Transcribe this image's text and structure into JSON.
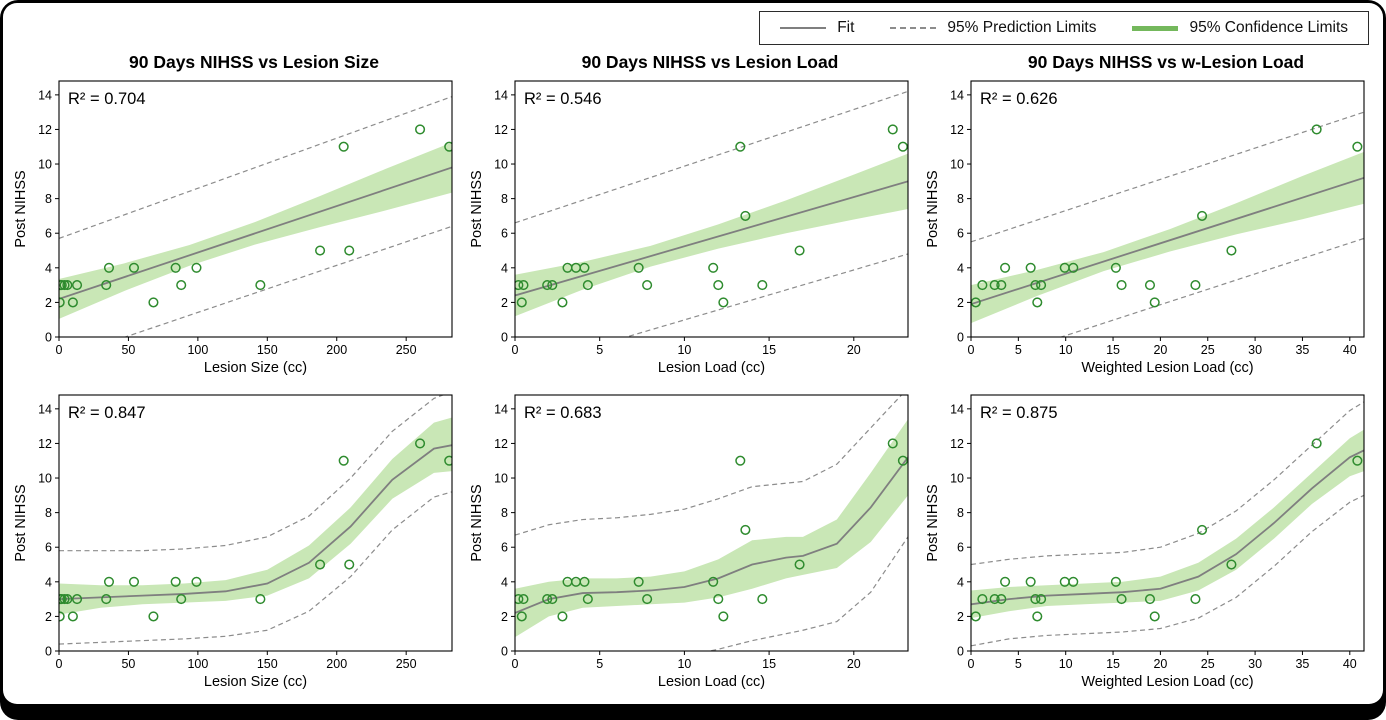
{
  "colors": {
    "fit": "#7f7f7f",
    "prediction": "#8c8c8c",
    "confidence_band": "#c9e7b6",
    "confidence_line": "#74b85c",
    "scatter": "#2e8b2e",
    "frame": "#000000",
    "background": "#ffffff"
  },
  "legend": {
    "items": [
      {
        "label": "Fit",
        "sample": "solid-line"
      },
      {
        "label": "95% Prediction Limits",
        "sample": "dashed-line"
      },
      {
        "label": "95% Confidence Limits",
        "sample": "green-band"
      }
    ]
  },
  "chart_data": [
    {
      "type": "scatter",
      "title": "90 Days NIHSS vs Lesion Size",
      "annotation": "R² = 0.704",
      "xlabel": "Lesion Size (cc)",
      "ylabel": "Post NIHSS",
      "xlim": [
        0,
        283
      ],
      "ylim": [
        0,
        14.8
      ],
      "xticks": [
        0,
        50,
        100,
        150,
        200,
        250
      ],
      "yticks": [
        0,
        2,
        4,
        6,
        8,
        10,
        12,
        14
      ],
      "points": [
        [
          0.5,
          2
        ],
        [
          1,
          3
        ],
        [
          2,
          3
        ],
        [
          4,
          3
        ],
        [
          6,
          3
        ],
        [
          10,
          2
        ],
        [
          13,
          3
        ],
        [
          34,
          3
        ],
        [
          36,
          4
        ],
        [
          54,
          4
        ],
        [
          68,
          2
        ],
        [
          84,
          4
        ],
        [
          88,
          3
        ],
        [
          99,
          4
        ],
        [
          145,
          3
        ],
        [
          188,
          5
        ],
        [
          205,
          11
        ],
        [
          209,
          5
        ],
        [
          260,
          12
        ],
        [
          281,
          11
        ]
      ],
      "fit": {
        "x": [
          0,
          283
        ],
        "y": [
          2.2,
          9.8
        ]
      },
      "confidence_band": {
        "x": [
          0,
          47,
          94,
          141,
          188,
          235,
          283
        ],
        "upper": [
          3.35,
          4.26,
          5.32,
          6.64,
          8.15,
          9.71,
          11.25
        ],
        "lower": [
          1.05,
          2.66,
          4.12,
          5.34,
          6.35,
          7.31,
          8.35
        ]
      },
      "prediction_upper": {
        "x": [
          0,
          283
        ],
        "y": [
          5.7,
          13.9
        ]
      },
      "prediction_lower": {
        "x": [
          0,
          283
        ],
        "y": [
          -1.3,
          6.4
        ]
      }
    },
    {
      "type": "scatter",
      "title": "90 Days NIHSS vs Lesion Load",
      "annotation": "R² = 0.546",
      "xlabel": "Lesion Load (cc)",
      "ylabel": "Post NIHSS",
      "xlim": [
        0,
        23.2
      ],
      "ylim": [
        0,
        14.8
      ],
      "xticks": [
        0,
        5,
        10,
        15,
        20
      ],
      "yticks": [
        0,
        2,
        4,
        6,
        8,
        10,
        12,
        14
      ],
      "points": [
        [
          0.2,
          3
        ],
        [
          0.4,
          2
        ],
        [
          0.5,
          3
        ],
        [
          1.9,
          3
        ],
        [
          2.2,
          3
        ],
        [
          2.8,
          2
        ],
        [
          3.1,
          4
        ],
        [
          3.6,
          4
        ],
        [
          4.1,
          4
        ],
        [
          4.3,
          3
        ],
        [
          7.3,
          4
        ],
        [
          7.8,
          3
        ],
        [
          11.7,
          4
        ],
        [
          12,
          3
        ],
        [
          12.3,
          2
        ],
        [
          13.3,
          11
        ],
        [
          13.6,
          7
        ],
        [
          14.6,
          3
        ],
        [
          16.8,
          5
        ],
        [
          22.3,
          12
        ],
        [
          22.9,
          11
        ]
      ],
      "fit": {
        "x": [
          0,
          23.2
        ],
        "y": [
          2.4,
          9.0
        ]
      },
      "confidence_band": {
        "x": [
          0,
          4,
          8,
          12,
          16,
          20,
          23.2
        ],
        "upper": [
          3.6,
          4.34,
          5.27,
          6.51,
          7.9,
          9.39,
          10.6
        ],
        "lower": [
          1.2,
          2.74,
          4.07,
          5.11,
          6.0,
          6.79,
          7.4
        ]
      },
      "prediction_upper": {
        "x": [
          0,
          23.2
        ],
        "y": [
          6.6,
          14.2
        ]
      },
      "prediction_lower": {
        "x": [
          0,
          23.2
        ],
        "y": [
          -1.9,
          4.8
        ]
      }
    },
    {
      "type": "scatter",
      "title": "90 Days NIHSS vs w-Lesion Load",
      "annotation": "R² = 0.626",
      "xlabel": "Weighted Lesion Load (cc)",
      "ylabel": "Post NIHSS",
      "xlim": [
        0,
        41.5
      ],
      "ylim": [
        0,
        14.8
      ],
      "xticks": [
        0,
        5,
        10,
        15,
        20,
        25,
        30,
        35,
        40
      ],
      "yticks": [
        0,
        2,
        4,
        6,
        8,
        10,
        12,
        14
      ],
      "points": [
        [
          0.5,
          2
        ],
        [
          1.2,
          3
        ],
        [
          2.5,
          3
        ],
        [
          3.2,
          3
        ],
        [
          3.6,
          4
        ],
        [
          6.3,
          4
        ],
        [
          6.8,
          3
        ],
        [
          7,
          2
        ],
        [
          7.4,
          3
        ],
        [
          9.9,
          4
        ],
        [
          10.8,
          4
        ],
        [
          15.3,
          4
        ],
        [
          15.9,
          3
        ],
        [
          18.9,
          3
        ],
        [
          19.4,
          2
        ],
        [
          23.7,
          3
        ],
        [
          24.4,
          7
        ],
        [
          27.5,
          5
        ],
        [
          36.5,
          12
        ],
        [
          40.8,
          11
        ]
      ],
      "fit": {
        "x": [
          0,
          41.5
        ],
        "y": [
          1.9,
          9.2
        ]
      },
      "confidence_band": {
        "x": [
          0,
          7,
          14,
          21,
          28,
          35,
          41.5
        ],
        "upper": [
          3.0,
          3.88,
          4.91,
          6.24,
          7.73,
          9.31,
          10.7
        ],
        "lower": [
          0.8,
          2.38,
          3.81,
          4.94,
          5.93,
          6.81,
          7.7
        ]
      },
      "prediction_upper": {
        "x": [
          0,
          41.5
        ],
        "y": [
          5.5,
          13.0
        ]
      },
      "prediction_lower": {
        "x": [
          0,
          41.5
        ],
        "y": [
          -1.7,
          5.7
        ]
      }
    },
    {
      "type": "scatter",
      "title": "",
      "annotation": "R² = 0.847",
      "xlabel": "Lesion Size (cc)",
      "ylabel": "Post NIHSS",
      "xlim": [
        0,
        283
      ],
      "ylim": [
        0,
        14.8
      ],
      "xticks": [
        0,
        50,
        100,
        150,
        200,
        250
      ],
      "yticks": [
        0,
        2,
        4,
        6,
        8,
        10,
        12,
        14
      ],
      "points": [
        [
          0.5,
          2
        ],
        [
          1,
          3
        ],
        [
          2,
          3
        ],
        [
          4,
          3
        ],
        [
          6,
          3
        ],
        [
          10,
          2
        ],
        [
          13,
          3
        ],
        [
          34,
          3
        ],
        [
          36,
          4
        ],
        [
          54,
          4
        ],
        [
          68,
          2
        ],
        [
          84,
          4
        ],
        [
          88,
          3
        ],
        [
          99,
          4
        ],
        [
          145,
          3
        ],
        [
          188,
          5
        ],
        [
          205,
          11
        ],
        [
          209,
          5
        ],
        [
          260,
          12
        ],
        [
          281,
          11
        ]
      ],
      "fit": {
        "x": [
          0,
          30,
          60,
          90,
          120,
          150,
          180,
          210,
          240,
          270,
          283
        ],
        "y": [
          3.0,
          3.1,
          3.2,
          3.3,
          3.45,
          3.9,
          5.1,
          7.2,
          9.9,
          11.7,
          11.9
        ]
      },
      "confidence_band": {
        "x": [
          0,
          30,
          60,
          90,
          120,
          150,
          180,
          210,
          240,
          270,
          283
        ],
        "upper": [
          3.9,
          3.8,
          3.8,
          3.9,
          4.1,
          4.7,
          6.1,
          8.3,
          11.1,
          13.2,
          13.5
        ],
        "lower": [
          2.1,
          2.5,
          2.7,
          2.8,
          2.9,
          3.2,
          4.2,
          6.2,
          8.8,
          10.3,
          10.4
        ]
      },
      "prediction_upper": {
        "x": [
          0,
          30,
          60,
          90,
          120,
          150,
          180,
          210,
          240,
          270,
          283
        ],
        "y": [
          5.8,
          5.8,
          5.8,
          5.9,
          6.1,
          6.6,
          7.8,
          10.0,
          12.7,
          14.6,
          15.0
        ]
      },
      "prediction_lower": {
        "x": [
          0,
          30,
          60,
          90,
          120,
          150,
          180,
          210,
          240,
          270,
          283
        ],
        "y": [
          0.4,
          0.5,
          0.6,
          0.7,
          0.85,
          1.2,
          2.3,
          4.3,
          7.0,
          8.9,
          9.2
        ]
      }
    },
    {
      "type": "scatter",
      "title": "",
      "annotation": "R² = 0.683",
      "xlabel": "Lesion Load (cc)",
      "ylabel": "Post NIHSS",
      "xlim": [
        0,
        23.2
      ],
      "ylim": [
        0,
        14.8
      ],
      "xticks": [
        0,
        5,
        10,
        15,
        20
      ],
      "yticks": [
        0,
        2,
        4,
        6,
        8,
        10,
        12,
        14
      ],
      "points": [
        [
          0.2,
          3
        ],
        [
          0.4,
          2
        ],
        [
          0.5,
          3
        ],
        [
          1.9,
          3
        ],
        [
          2.2,
          3
        ],
        [
          2.8,
          2
        ],
        [
          3.1,
          4
        ],
        [
          3.6,
          4
        ],
        [
          4.1,
          4
        ],
        [
          4.3,
          3
        ],
        [
          7.3,
          4
        ],
        [
          7.8,
          3
        ],
        [
          11.7,
          4
        ],
        [
          12,
          3
        ],
        [
          12.3,
          2
        ],
        [
          13.3,
          11
        ],
        [
          13.6,
          7
        ],
        [
          14.6,
          3
        ],
        [
          16.8,
          5
        ],
        [
          22.3,
          12
        ],
        [
          22.9,
          11
        ]
      ],
      "fit": {
        "x": [
          0,
          2,
          4,
          6,
          8,
          10,
          12,
          14,
          16,
          17,
          19,
          21,
          23.2
        ],
        "y": [
          2.2,
          3.0,
          3.35,
          3.4,
          3.5,
          3.7,
          4.2,
          5.0,
          5.4,
          5.5,
          6.2,
          8.3,
          11.2
        ]
      },
      "confidence_band": {
        "x": [
          0,
          2,
          4,
          6,
          8,
          10,
          12,
          14,
          16,
          17,
          19,
          21,
          23.2
        ],
        "upper": [
          3.6,
          4.0,
          4.2,
          4.2,
          4.3,
          4.6,
          5.3,
          6.4,
          6.6,
          6.6,
          7.6,
          10.3,
          13.4
        ],
        "lower": [
          0.8,
          2.0,
          2.5,
          2.6,
          2.7,
          2.8,
          3.1,
          3.6,
          4.2,
          4.4,
          4.8,
          6.3,
          9.0
        ]
      },
      "prediction_upper": {
        "x": [
          0,
          2,
          4,
          6,
          8,
          10,
          12,
          14,
          16,
          17,
          19,
          21,
          23.2
        ],
        "y": [
          6.7,
          7.3,
          7.6,
          7.7,
          7.9,
          8.2,
          8.8,
          9.5,
          9.7,
          9.8,
          10.8,
          12.9,
          15.2
        ]
      },
      "prediction_lower": {
        "x": [
          0,
          2,
          4,
          6,
          8,
          10,
          12,
          14,
          16,
          17,
          19,
          21,
          23.2
        ],
        "y": [
          -2.4,
          -1.2,
          -0.7,
          -0.6,
          -0.5,
          -0.3,
          0.1,
          0.6,
          1.0,
          1.2,
          1.7,
          3.4,
          6.6
        ]
      }
    },
    {
      "type": "scatter",
      "title": "",
      "annotation": "R² = 0.875",
      "xlabel": "Weighted Lesion Load (cc)",
      "ylabel": "Post NIHSS",
      "xlim": [
        0,
        41.5
      ],
      "ylim": [
        0,
        14.8
      ],
      "xticks": [
        0,
        5,
        10,
        15,
        20,
        25,
        30,
        35,
        40
      ],
      "yticks": [
        0,
        2,
        4,
        6,
        8,
        10,
        12,
        14
      ],
      "points": [
        [
          0.5,
          2
        ],
        [
          1.2,
          3
        ],
        [
          2.5,
          3
        ],
        [
          3.2,
          3
        ],
        [
          3.6,
          4
        ],
        [
          6.3,
          4
        ],
        [
          6.8,
          3
        ],
        [
          7,
          2
        ],
        [
          7.4,
          3
        ],
        [
          9.9,
          4
        ],
        [
          10.8,
          4
        ],
        [
          15.3,
          4
        ],
        [
          15.9,
          3
        ],
        [
          18.9,
          3
        ],
        [
          19.4,
          2
        ],
        [
          23.7,
          3
        ],
        [
          24.4,
          7
        ],
        [
          27.5,
          5
        ],
        [
          36.5,
          12
        ],
        [
          40.8,
          11
        ]
      ],
      "fit": {
        "x": [
          0,
          4,
          8,
          12,
          16,
          20,
          24,
          28,
          32,
          36,
          40,
          41.5
        ],
        "y": [
          2.7,
          3.0,
          3.2,
          3.3,
          3.4,
          3.6,
          4.3,
          5.6,
          7.4,
          9.4,
          11.2,
          11.6
        ]
      },
      "confidence_band": {
        "x": [
          0,
          4,
          8,
          12,
          16,
          20,
          24,
          28,
          32,
          36,
          40,
          41.5
        ],
        "upper": [
          3.5,
          3.7,
          3.8,
          3.9,
          4.0,
          4.3,
          5.1,
          6.5,
          8.3,
          10.3,
          12.3,
          12.8
        ],
        "lower": [
          1.9,
          2.3,
          2.6,
          2.7,
          2.8,
          2.9,
          3.5,
          4.7,
          6.5,
          8.5,
          10.1,
          10.4
        ]
      },
      "prediction_upper": {
        "x": [
          0,
          4,
          8,
          12,
          16,
          20,
          24,
          28,
          32,
          36,
          40,
          41.5
        ],
        "y": [
          5.0,
          5.3,
          5.5,
          5.6,
          5.7,
          6.0,
          6.8,
          8.1,
          9.9,
          11.9,
          13.9,
          14.4
        ]
      },
      "prediction_lower": {
        "x": [
          0,
          4,
          8,
          12,
          16,
          20,
          24,
          28,
          32,
          36,
          40,
          41.5
        ],
        "y": [
          0.3,
          0.7,
          0.9,
          1.0,
          1.1,
          1.3,
          1.9,
          3.1,
          4.9,
          6.9,
          8.6,
          9.0
        ]
      }
    }
  ]
}
